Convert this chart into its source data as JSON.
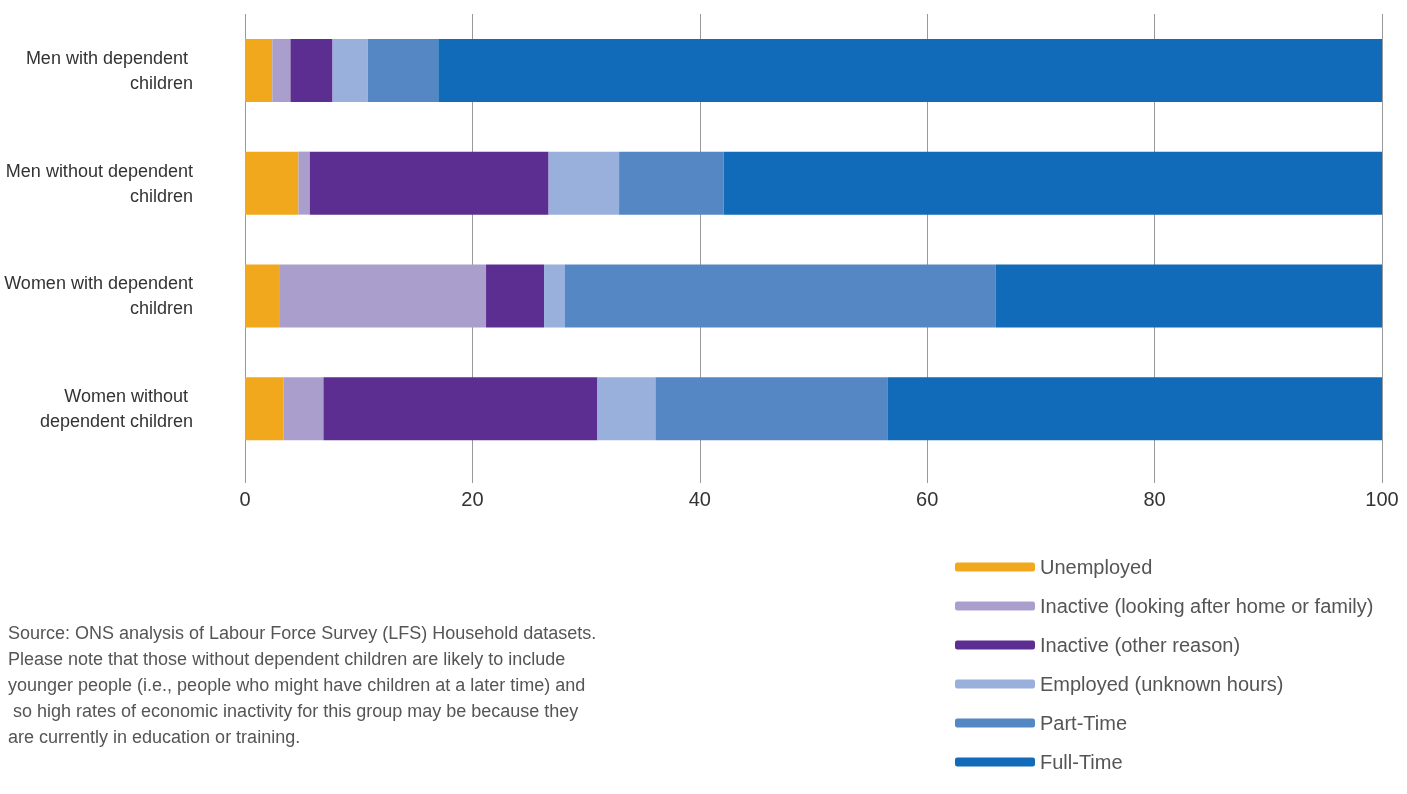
{
  "chart_data": {
    "type": "bar",
    "orientation": "horizontal",
    "stacked": true,
    "categories": [
      "Men with dependent children",
      "Men without dependent children",
      "Women with dependent children",
      "Women without dependent children"
    ],
    "series": [
      {
        "name": "Unemployed",
        "color": "#f2a81d",
        "values": [
          2.4,
          4.7,
          3.0,
          3.4
        ]
      },
      {
        "name": "Inactive (looking after home or family)",
        "color": "#aa9fcc",
        "values": [
          1.6,
          1.0,
          18.2,
          3.5
        ]
      },
      {
        "name": "Inactive (other reason)",
        "color": "#5c2e91",
        "values": [
          3.7,
          21.0,
          5.1,
          24.1
        ]
      },
      {
        "name": "Employed (unknown hours)",
        "color": "#9ab0dc",
        "values": [
          3.1,
          6.2,
          1.8,
          5.1
        ]
      },
      {
        "name": "Part-Time",
        "color": "#5687c5",
        "values": [
          6.2,
          9.2,
          37.9,
          20.4
        ]
      },
      {
        "name": "Full-Time",
        "color": "#116bb8",
        "values": [
          83.1,
          57.9,
          34.0,
          43.5
        ]
      }
    ],
    "xlim": [
      0,
      100
    ],
    "xticks": [
      0,
      20,
      40,
      60,
      80,
      100
    ],
    "grid": "x",
    "legend": "bottom right",
    "annotations": [
      "Source: ONS analysis of Labour Force Survey (LFS) Household datasets. Please note that those without dependent children are likely to include younger people (i.e., people who might have children at a later time) and so high rates of economic inactivity for this group may be because they are currently in education or training."
    ]
  }
}
